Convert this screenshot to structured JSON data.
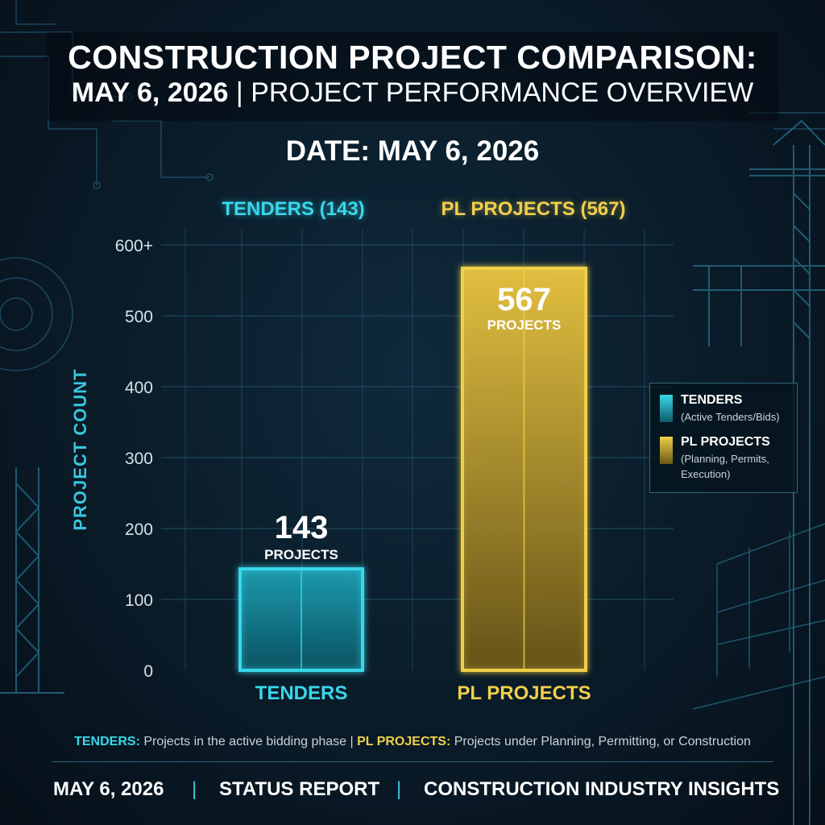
{
  "header": {
    "title_line1": "CONSTRUCTION PROJECT COMPARISON:",
    "title_line2_bold": "MAY 6, 2026",
    "title_line2_sep": " | ",
    "title_line2_rest": "PROJECT PERFORMANCE OVERVIEW",
    "subtitle": "DATE: MAY 6, 2026"
  },
  "chart_data": {
    "type": "bar",
    "categories": [
      "TENDERS",
      "PL PROJECTS"
    ],
    "values": [
      143,
      567
    ],
    "top_labels": [
      "TENDERS (143)",
      "PL PROJECTS (567)"
    ],
    "data_labels": [
      {
        "value": "143",
        "unit": "PROJECTS"
      },
      {
        "value": "567",
        "unit": "PROJECTS"
      }
    ],
    "ylabel": "PROJECT COUNT",
    "yticks": [
      {
        "value": 0,
        "label": "0"
      },
      {
        "value": 100,
        "label": "100"
      },
      {
        "value": 200,
        "label": "200"
      },
      {
        "value": 300,
        "label": "300"
      },
      {
        "value": 400,
        "label": "400"
      },
      {
        "value": 500,
        "label": "500"
      },
      {
        "value": 600,
        "label": "600+"
      }
    ],
    "ylim": [
      0,
      600
    ],
    "grid": true,
    "colors": [
      "#39d7ea",
      "#f0cf4a"
    ],
    "legend_position": "right",
    "legend": [
      {
        "name": "TENDERS",
        "description": "(Active Tenders/Bids)"
      },
      {
        "name": "PL PROJECTS",
        "description": "(Planning, Permits, Execution)"
      }
    ]
  },
  "footnote": {
    "tenders_key": "TENDERS:",
    "tenders_text": " Projects in the active bidding phase | ",
    "pl_key": "PL PROJECTS:",
    "pl_text": " Projects under Planning, Permitting, or Construction"
  },
  "footer": {
    "date": "MAY 6, 2026",
    "separator": "|",
    "report": "STATUS REPORT",
    "insights": "CONSTRUCTION INDUSTRY INSIGHTS"
  }
}
